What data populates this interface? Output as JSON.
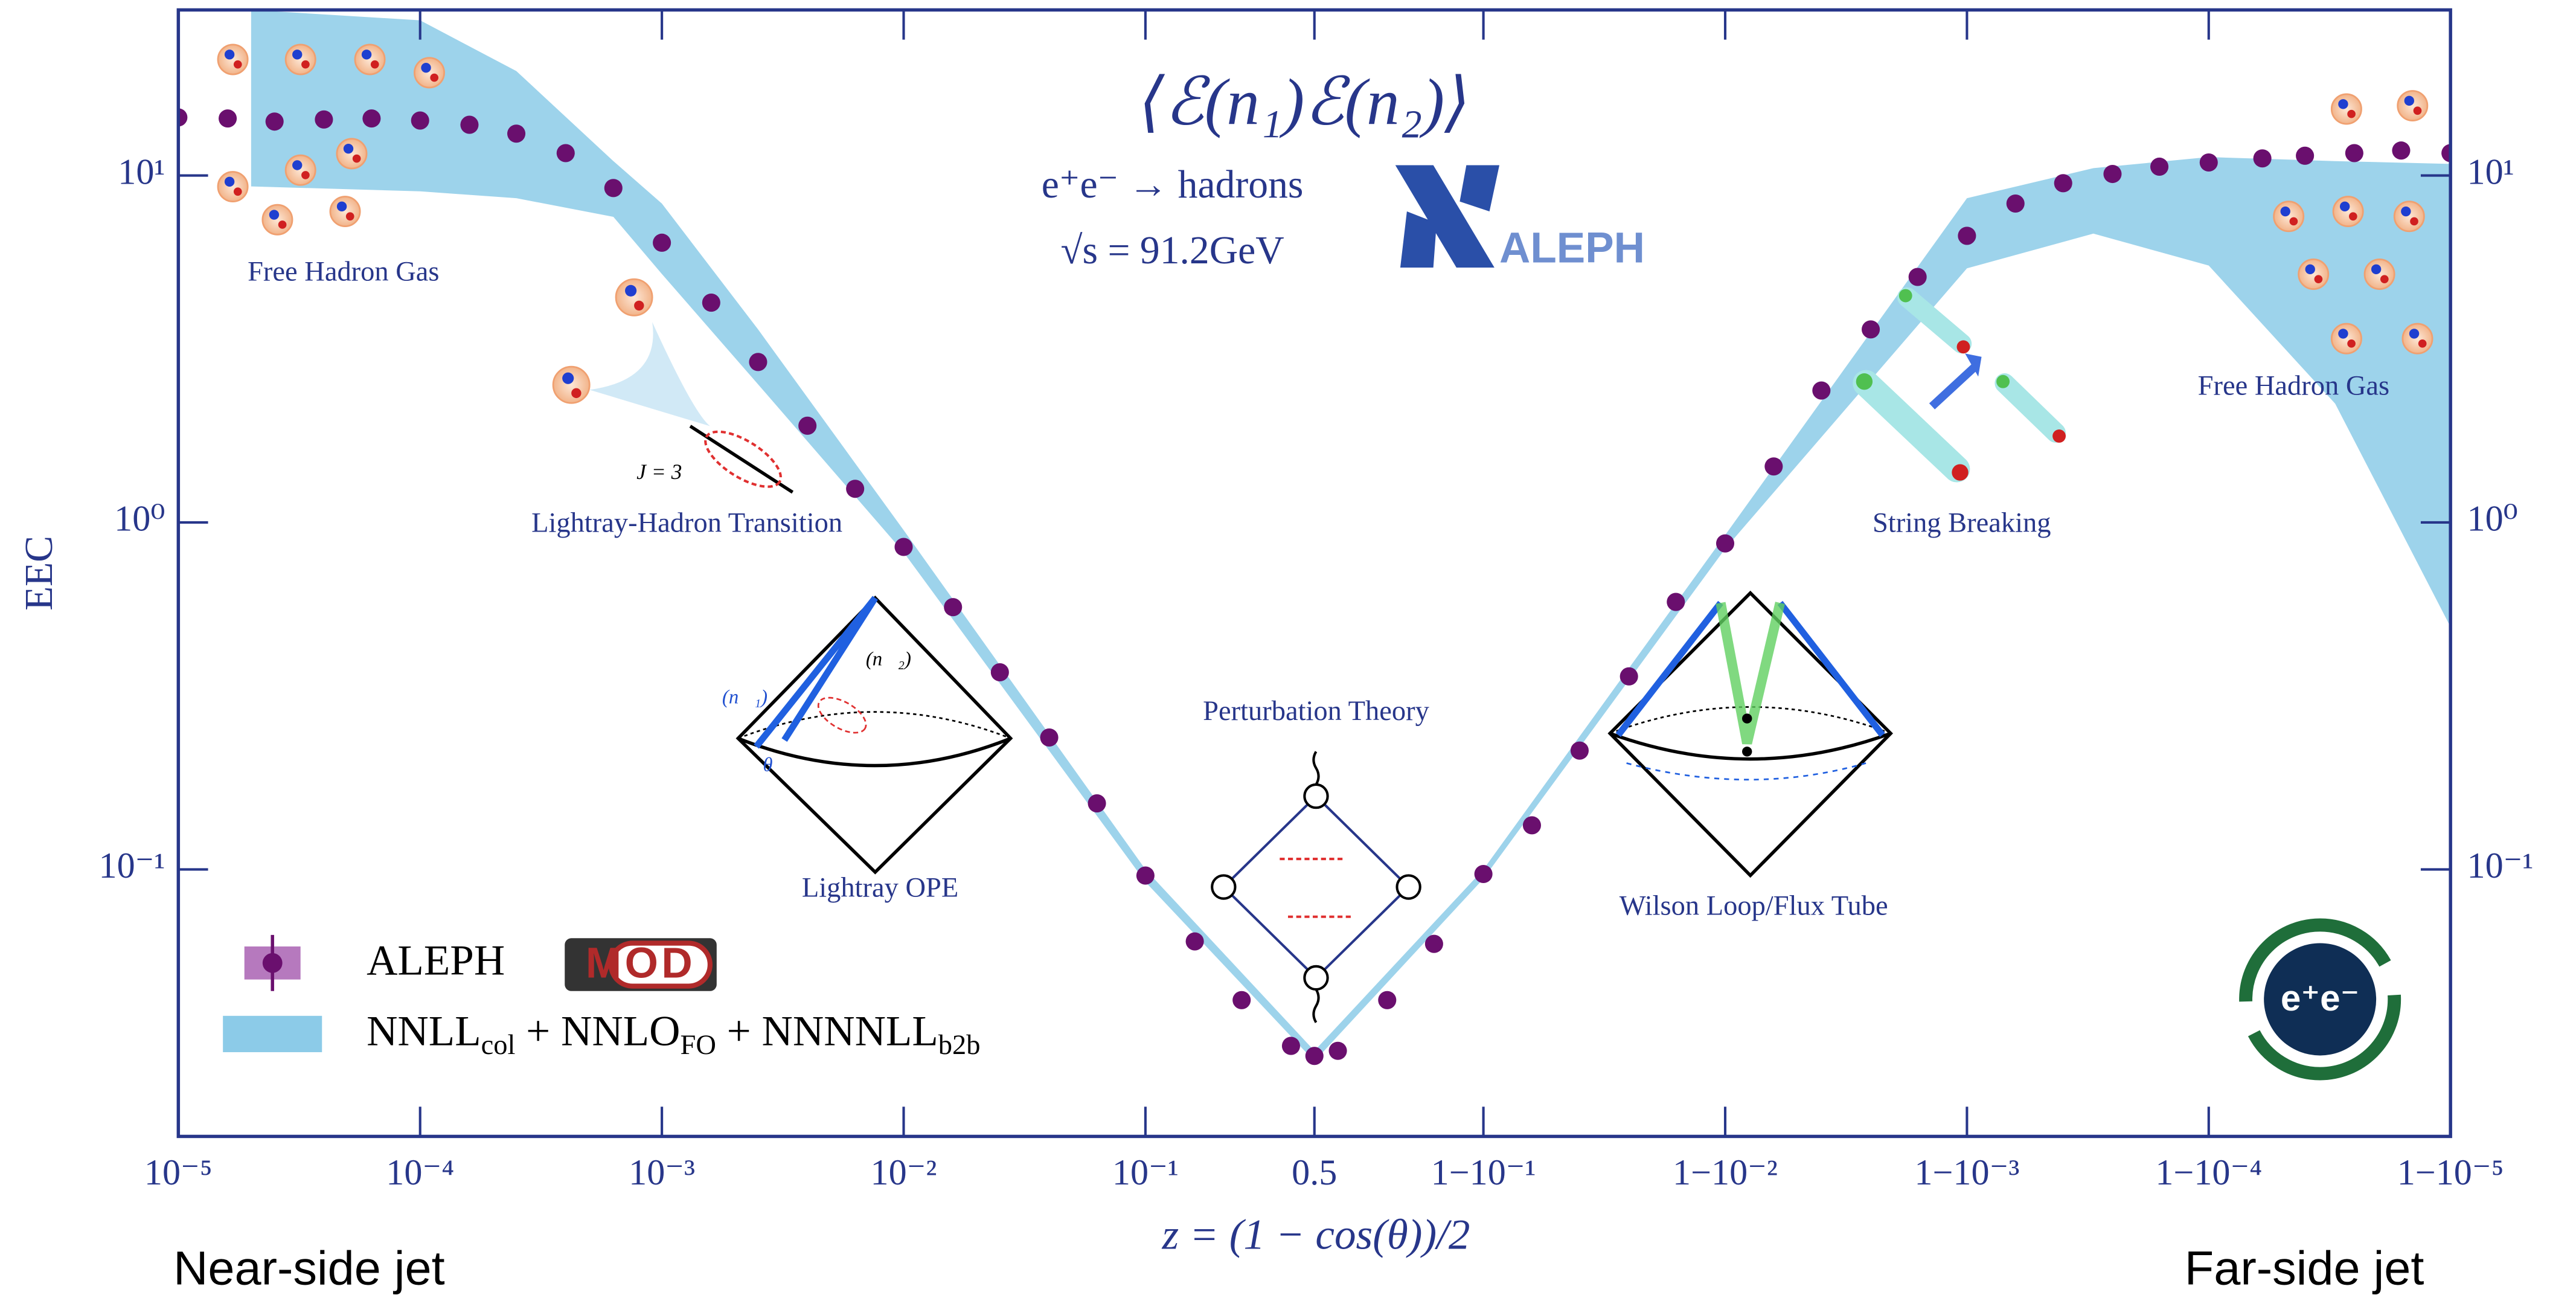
{
  "chart_data": {
    "type": "scatter",
    "title": "⟨ℰ(n₁)ℰ(n₂)⟩",
    "subtitle": [
      "e⁺e⁻ → hadrons",
      "√s = 91.2GeV"
    ],
    "x_label": "z = (1 − cos(θ))/2",
    "y_label": "EEC",
    "xscale": "log-mirrored",
    "yscale": "log",
    "xlim": [
      1e-05,
      0.99999
    ],
    "ylim": [
      0.017,
      30
    ],
    "xticks": [
      {
        "value": 1e-05,
        "label": "10⁻⁵"
      },
      {
        "value": 0.0001,
        "label": "10⁻⁴"
      },
      {
        "value": 0.001,
        "label": "10⁻³"
      },
      {
        "value": 0.01,
        "label": "10⁻²"
      },
      {
        "value": 0.1,
        "label": "10⁻¹"
      },
      0.5,
      {
        "value": 0.9,
        "label": "1−10⁻¹"
      },
      {
        "value": 0.99,
        "label": "1−10⁻²"
      },
      {
        "value": 0.999,
        "label": "1−10⁻³"
      },
      {
        "value": 0.9999,
        "label": "1−10⁻⁴"
      },
      {
        "value": 0.99999,
        "label": "1−10⁻⁵"
      }
    ],
    "yticks": [
      {
        "value": 0.1,
        "label": "10⁻¹"
      },
      {
        "value": 1,
        "label": "10⁰"
      },
      {
        "value": 10,
        "label": "10¹"
      }
    ],
    "series": [
      {
        "name": "ALEPH",
        "type": "scatter",
        "color": "#6a0f6e",
        "x": [
          1e-05,
          1.6e-05,
          2.5e-05,
          4e-05,
          6.3e-05,
          0.0001,
          0.00016,
          0.00025,
          0.0004,
          0.00063,
          0.001,
          0.0016,
          0.0025,
          0.004,
          0.0063,
          0.01,
          0.016,
          0.025,
          0.04,
          0.063,
          0.1,
          0.16,
          0.25,
          0.4,
          0.5,
          0.6,
          0.75,
          0.84,
          0.9,
          0.937,
          0.96,
          0.975,
          0.984,
          0.99,
          0.9937,
          0.996,
          0.9975,
          0.9984,
          0.999,
          0.99937,
          0.9996,
          0.99975,
          0.99984,
          0.9999,
          0.99994,
          0.99996,
          0.999975,
          0.999984,
          0.99999
        ],
        "values": [
          14.7,
          14.6,
          14.3,
          14.5,
          14.6,
          14.4,
          14.0,
          13.2,
          11.6,
          9.2,
          6.4,
          4.3,
          2.9,
          1.9,
          1.25,
          0.85,
          0.57,
          0.37,
          0.24,
          0.155,
          0.096,
          0.062,
          0.042,
          0.031,
          0.029,
          0.03,
          0.042,
          0.061,
          0.097,
          0.134,
          0.22,
          0.36,
          0.59,
          0.87,
          1.45,
          2.4,
          3.6,
          5.1,
          6.7,
          8.3,
          9.5,
          10.1,
          10.6,
          10.9,
          11.2,
          11.4,
          11.6,
          11.8,
          11.6
        ]
      },
      {
        "name": [
          "NNLL",
          "col",
          " + NNLO",
          "FO",
          " + NNNNLL",
          "b2b"
        ],
        "type": "band",
        "color": "#8ccbe8",
        "x": [
          2e-05,
          0.0001,
          0.00025,
          0.00063,
          0.001,
          0.0025,
          0.01,
          0.1,
          0.5,
          0.9,
          0.99,
          0.999,
          0.9997,
          0.9999,
          0.99997,
          0.99999
        ],
        "lower": [
          9.3,
          9.0,
          8.6,
          7.6,
          5.2,
          2.5,
          0.82,
          0.092,
          0.028,
          0.094,
          0.84,
          5.4,
          6.8,
          5.5,
          2.2,
          0.5
        ],
        "upper": [
          30,
          28,
          20,
          11,
          8.3,
          3.6,
          0.95,
          0.1,
          0.03,
          0.1,
          0.92,
          8.6,
          10.5,
          11.3,
          11.0,
          10.8
        ]
      }
    ],
    "annotations": [
      "Free Hadron Gas",
      "Free Hadron Gas",
      "Lightray-Hadron Transition",
      "J = 3",
      "String Breaking",
      "Lightray OPE",
      "Perturbation Theory",
      "Wilson Loop/Flux Tube",
      "ℰ(n⃗₁)",
      "ℰ(n⃗₂)",
      "θ"
    ],
    "logos": [
      "ALEPH",
      "MOD",
      "e⁺e⁻"
    ],
    "side_labels": [
      "Near-side jet",
      "Far-side jet"
    ]
  }
}
